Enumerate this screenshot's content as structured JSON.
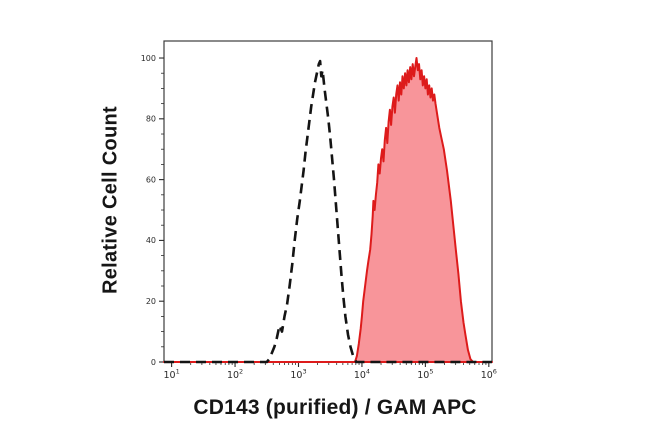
{
  "figure": {
    "background": "#ffffff",
    "description": "Flow cytometry surface staining overlay histogram"
  },
  "chart_data": {
    "type": "area",
    "subtype": "flow-cytometry-overlay-histogram",
    "title": "",
    "xlabel": "CD143 (purified) / GAM APC",
    "ylabel": "Relative Cell Count",
    "x_scale": "log10",
    "xlim_log10": [
      0.88,
      6.05
    ],
    "x_tick_label_base": "10",
    "x_tick_exponents": [
      1,
      2,
      3,
      4,
      5,
      6
    ],
    "x_minor_ticks_per_decade": [
      2,
      3,
      4,
      5,
      6,
      7,
      8,
      9
    ],
    "ylim": [
      0,
      105.6
    ],
    "y_ticks": [
      0,
      20,
      40,
      60,
      80,
      100
    ],
    "y_minor_tick_step": 5,
    "grid": false,
    "legend_position": "none",
    "points_format": "[log10(x), relative_cell_count]",
    "series": [
      {
        "name": "negative control (dashed outline)",
        "line_style": "dashed",
        "line_color": "#141414",
        "line_width": 2.6,
        "dash_pattern": "10 6",
        "fill_color": "none",
        "points": [
          [
            0.88,
            0
          ],
          [
            2.5,
            0
          ],
          [
            2.54,
            1
          ],
          [
            2.58,
            3
          ],
          [
            2.62,
            5
          ],
          [
            2.66,
            8
          ],
          [
            2.7,
            12
          ],
          [
            2.74,
            10
          ],
          [
            2.78,
            15
          ],
          [
            2.82,
            19
          ],
          [
            2.86,
            25
          ],
          [
            2.9,
            32
          ],
          [
            2.94,
            40
          ],
          [
            2.98,
            47
          ],
          [
            3.02,
            53
          ],
          [
            3.05,
            58
          ],
          [
            3.08,
            63
          ],
          [
            3.11,
            69
          ],
          [
            3.14,
            74
          ],
          [
            3.17,
            79
          ],
          [
            3.2,
            84
          ],
          [
            3.23,
            88
          ],
          [
            3.26,
            92
          ],
          [
            3.29,
            95
          ],
          [
            3.32,
            98
          ],
          [
            3.34,
            99
          ],
          [
            3.36,
            94
          ],
          [
            3.38,
            96
          ],
          [
            3.41,
            90
          ],
          [
            3.44,
            85
          ],
          [
            3.47,
            80
          ],
          [
            3.5,
            74
          ],
          [
            3.53,
            67
          ],
          [
            3.56,
            60
          ],
          [
            3.59,
            52
          ],
          [
            3.62,
            44
          ],
          [
            3.65,
            36
          ],
          [
            3.68,
            28
          ],
          [
            3.71,
            21
          ],
          [
            3.74,
            15
          ],
          [
            3.78,
            9
          ],
          [
            3.82,
            5
          ],
          [
            3.86,
            2
          ],
          [
            3.91,
            0
          ],
          [
            6.05,
            0
          ]
        ]
      },
      {
        "name": "CD143 (purified) / GAM APC stained (red filled)",
        "line_style": "solid",
        "line_color": "#dd1b1b",
        "line_width": 2,
        "dash_pattern": "",
        "fill_color": "#f8959a",
        "points": [
          [
            0.88,
            0
          ],
          [
            3.89,
            0
          ],
          [
            3.92,
            2
          ],
          [
            3.95,
            6
          ],
          [
            3.98,
            11
          ],
          [
            4.0,
            15
          ],
          [
            4.02,
            20
          ],
          [
            4.05,
            25
          ],
          [
            4.08,
            30
          ],
          [
            4.1,
            33
          ],
          [
            4.13,
            37
          ],
          [
            4.15,
            42
          ],
          [
            4.17,
            48
          ],
          [
            4.18,
            53
          ],
          [
            4.2,
            50
          ],
          [
            4.22,
            55
          ],
          [
            4.24,
            59
          ],
          [
            4.26,
            65
          ],
          [
            4.28,
            62
          ],
          [
            4.3,
            67
          ],
          [
            4.32,
            70
          ],
          [
            4.34,
            66
          ],
          [
            4.36,
            73
          ],
          [
            4.38,
            77
          ],
          [
            4.4,
            72
          ],
          [
            4.42,
            79
          ],
          [
            4.44,
            83
          ],
          [
            4.46,
            78
          ],
          [
            4.48,
            84
          ],
          [
            4.5,
            87
          ],
          [
            4.52,
            82
          ],
          [
            4.54,
            88
          ],
          [
            4.56,
            91
          ],
          [
            4.58,
            86
          ],
          [
            4.6,
            92
          ],
          [
            4.62,
            88
          ],
          [
            4.64,
            94
          ],
          [
            4.66,
            90
          ],
          [
            4.68,
            95
          ],
          [
            4.7,
            91
          ],
          [
            4.72,
            96
          ],
          [
            4.74,
            92
          ],
          [
            4.76,
            97
          ],
          [
            4.78,
            93
          ],
          [
            4.8,
            98
          ],
          [
            4.82,
            94
          ],
          [
            4.84,
            97
          ],
          [
            4.86,
            100
          ],
          [
            4.88,
            96
          ],
          [
            4.9,
            98
          ],
          [
            4.92,
            93
          ],
          [
            4.94,
            96
          ],
          [
            4.96,
            91
          ],
          [
            4.98,
            94
          ],
          [
            5.0,
            90
          ],
          [
            5.02,
            93
          ],
          [
            5.04,
            88
          ],
          [
            5.06,
            91
          ],
          [
            5.08,
            87
          ],
          [
            5.1,
            90
          ],
          [
            5.12,
            86
          ],
          [
            5.14,
            88
          ],
          [
            5.16,
            85
          ],
          [
            5.19,
            81
          ],
          [
            5.22,
            77
          ],
          [
            5.25,
            74
          ],
          [
            5.29,
            70
          ],
          [
            5.34,
            63
          ],
          [
            5.4,
            53
          ],
          [
            5.44,
            45
          ],
          [
            5.48,
            37
          ],
          [
            5.52,
            29
          ],
          [
            5.56,
            20
          ],
          [
            5.6,
            13
          ],
          [
            5.63,
            9
          ],
          [
            5.67,
            4
          ],
          [
            5.71,
            1
          ],
          [
            5.75,
            0
          ],
          [
            6.05,
            0
          ]
        ]
      }
    ],
    "colors": {
      "axis": "#3c3c3c",
      "tick": "#2b2b2b",
      "tick_label": "#2b2b2b",
      "title_text": "#161616",
      "background": "#ffffff"
    }
  }
}
